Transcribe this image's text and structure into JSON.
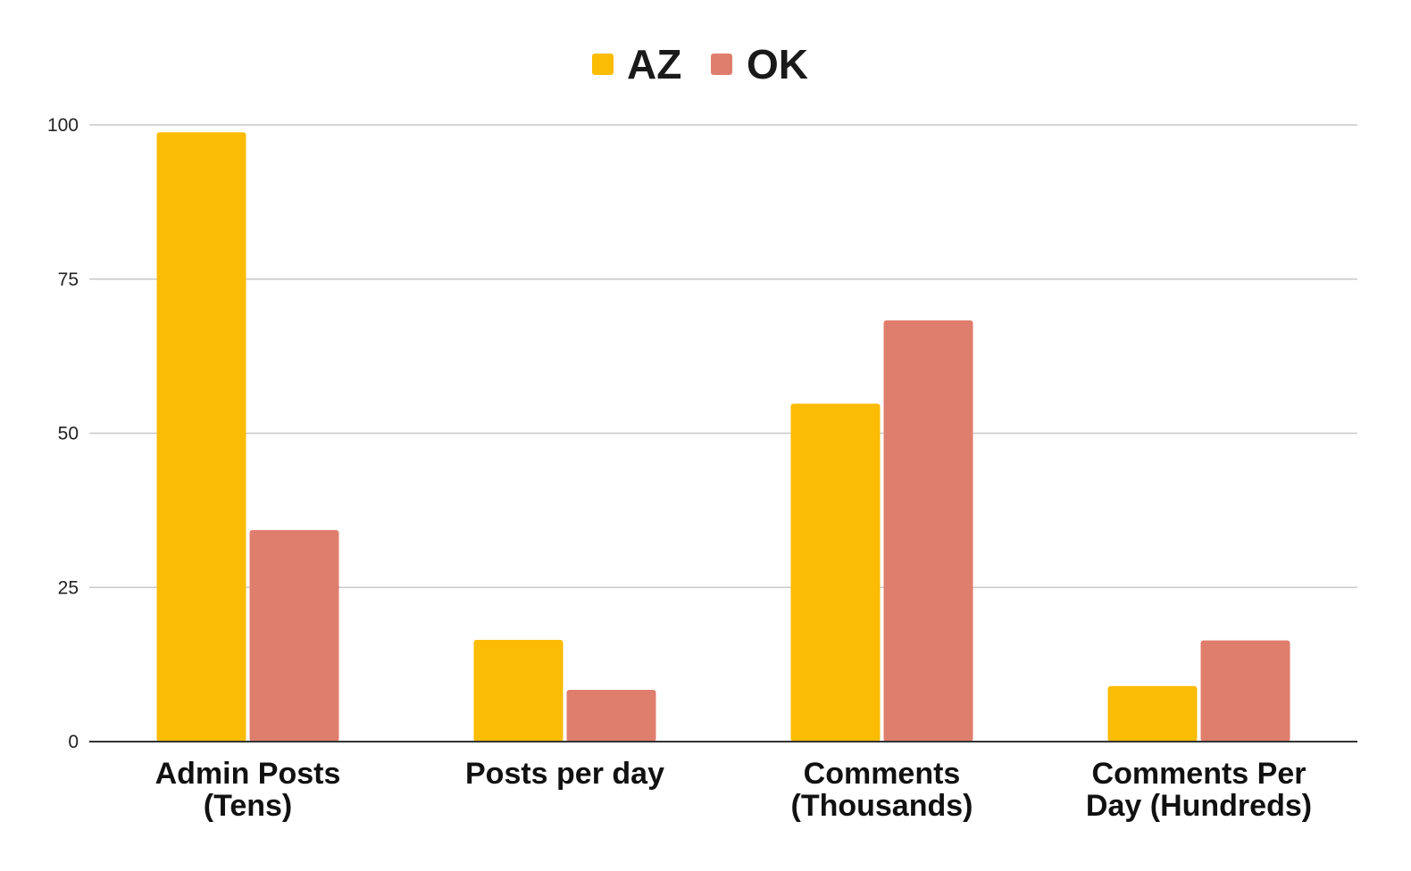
{
  "chart_data": {
    "type": "bar",
    "title": "",
    "xlabel": "",
    "ylabel": "",
    "ylim": [
      0,
      100
    ],
    "y_ticks": [
      0,
      25,
      50,
      75,
      100
    ],
    "grid": true,
    "legend_position": "top-center",
    "categories": [
      [
        "Admin Posts",
        "(Tens)"
      ],
      [
        "Posts per day"
      ],
      [
        "Comments",
        "(Thousands)"
      ],
      [
        "Comments Per",
        "Day (Hundreds)"
      ]
    ],
    "series": [
      {
        "name": "AZ",
        "color": "#FBBC04",
        "values": [
          98.8,
          16.5,
          54.8,
          9.0
        ]
      },
      {
        "name": "OK",
        "color": "#E07E6D",
        "values": [
          34.3,
          8.4,
          68.3,
          16.4
        ]
      }
    ]
  }
}
